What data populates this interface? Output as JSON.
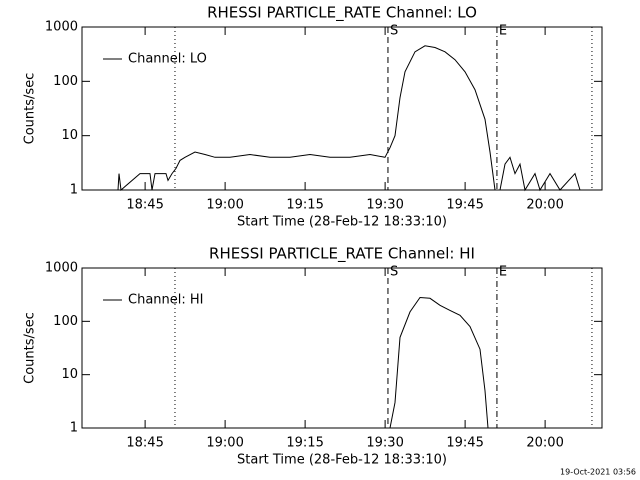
{
  "chart_data": [
    {
      "type": "line",
      "title": "RHESSI PARTICLE_RATE Channel: LO",
      "xlabel": "Start Time (28-Feb-12 18:33:10)",
      "ylabel": "Counts/sec",
      "log_y": true,
      "xlim": [
        0,
        5850
      ],
      "ylim": [
        1,
        1000
      ],
      "xticks": [
        {
          "value": 710,
          "label": "18:45"
        },
        {
          "value": 1610,
          "label": "19:00"
        },
        {
          "value": 2510,
          "label": "19:15"
        },
        {
          "value": 3410,
          "label": "19:30"
        },
        {
          "value": 4310,
          "label": "19:45"
        },
        {
          "value": 5210,
          "label": "20:00"
        }
      ],
      "yticks": [
        1,
        10,
        100,
        1000
      ],
      "legend": "upper left",
      "markers": [
        {
          "x": 1046,
          "style": "dotted"
        },
        {
          "x": 3442,
          "style": "dashed",
          "label": "S"
        },
        {
          "x": 4668,
          "style": "dashdot",
          "label": "E"
        },
        {
          "x": 5737,
          "style": "dotted"
        }
      ],
      "series": [
        {
          "name": "Channel: LO",
          "color": "#000000",
          "x": [
            0,
            405,
            416,
            439,
            653,
            765,
            788,
            821,
            945,
            968,
            1013,
            1058,
            1103,
            1159,
            1271,
            1384,
            1496,
            1665,
            1890,
            2115,
            2340,
            2565,
            2790,
            3015,
            3240,
            3409,
            3465,
            3521,
            3578,
            3634,
            3746,
            3859,
            3971,
            4084,
            4196,
            4309,
            4421,
            4534,
            4590,
            4646,
            4703,
            4759,
            4815,
            4871,
            4928,
            4984,
            5096,
            5153,
            5265,
            5378,
            5546,
            5603,
            5850
          ],
          "values": [
            1,
            1,
            2,
            1,
            2,
            2,
            1,
            2,
            2,
            1.5,
            2,
            2.5,
            3.5,
            4,
            5,
            4.5,
            4,
            4,
            4.5,
            4,
            4,
            4.5,
            4,
            4,
            4.5,
            4,
            6,
            10,
            50,
            150,
            350,
            450,
            420,
            350,
            250,
            150,
            70,
            20,
            5,
            1,
            1,
            3,
            4,
            2,
            3,
            1,
            2,
            1,
            2,
            1,
            2,
            1,
            1
          ]
        }
      ]
    },
    {
      "type": "line",
      "title": "RHESSI PARTICLE_RATE Channel: HI",
      "xlabel": "Start Time (28-Feb-12 18:33:10)",
      "ylabel": "Counts/sec",
      "log_y": true,
      "xlim": [
        0,
        5850
      ],
      "ylim": [
        1,
        1000
      ],
      "xticks": [
        {
          "value": 710,
          "label": "18:45"
        },
        {
          "value": 1610,
          "label": "19:00"
        },
        {
          "value": 2510,
          "label": "19:15"
        },
        {
          "value": 3410,
          "label": "19:30"
        },
        {
          "value": 4310,
          "label": "19:45"
        },
        {
          "value": 5210,
          "label": "20:00"
        }
      ],
      "yticks": [
        1,
        10,
        100,
        1000
      ],
      "legend": "upper left",
      "markers": [
        {
          "x": 1046,
          "style": "dotted"
        },
        {
          "x": 3442,
          "style": "dashed",
          "label": "S"
        },
        {
          "x": 4668,
          "style": "dashdot",
          "label": "E"
        },
        {
          "x": 5737,
          "style": "dotted"
        }
      ],
      "series": [
        {
          "name": "Channel: HI",
          "color": "#000000",
          "x": [
            3465,
            3521,
            3578,
            3690,
            3803,
            3915,
            4028,
            4140,
            4253,
            4365,
            4478,
            4534,
            4568
          ],
          "values": [
            1,
            3,
            50,
            150,
            280,
            270,
            200,
            160,
            130,
            80,
            30,
            5,
            1
          ]
        }
      ]
    }
  ],
  "timestamp": "19-Oct-2021 03:56"
}
